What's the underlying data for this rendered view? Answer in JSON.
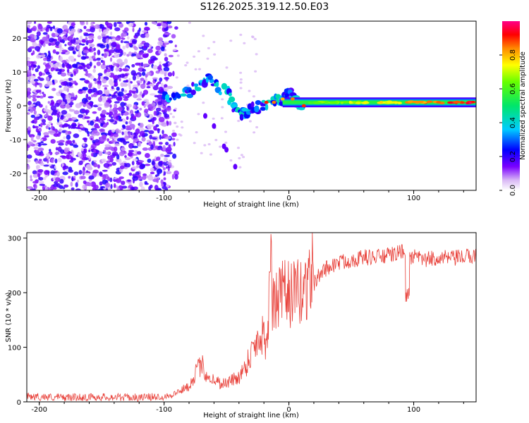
{
  "figure_title": "S126.2025.319.12.50.E03",
  "chart_data": [
    {
      "type": "heatmap",
      "title": "S126.2025.319.12.50.E03",
      "xlabel": "Height of straight line (km)",
      "ylabel": "Frequency (Hz)",
      "xlim": [
        -210,
        150
      ],
      "ylim": [
        -25,
        25
      ],
      "x_ticks": [
        -200,
        -100,
        0,
        100
      ],
      "x_tick_labels": [
        "-200",
        "-100",
        "0",
        "100"
      ],
      "y_ticks": [
        -20,
        -10,
        0,
        10,
        20
      ],
      "y_tick_labels": [
        "-20",
        "-10",
        "0",
        "10",
        "20"
      ],
      "colorbar": {
        "label": "Normalized spectral amplitude",
        "range": [
          0,
          1
        ],
        "ticks": [
          0.0,
          0.2,
          0.4,
          0.6,
          0.8
        ],
        "tick_labels": [
          "0.0",
          "0.2",
          "0.4",
          "0.6",
          "0.8"
        ],
        "colormap": "rainbow (white-purple-blue-cyan-green-yellow-red-magenta)"
      },
      "features": {
        "noise_region_x": [
          -210,
          -95
        ],
        "noise_amplitude": 0.1,
        "band_center_hz": 1,
        "band_x_start": -5,
        "band_peak_amplitude": 1.0,
        "tilted_path": [
          [
            -100,
            2
          ],
          [
            -80,
            4
          ],
          [
            -65,
            8
          ],
          [
            -50,
            4
          ],
          [
            -40,
            -3
          ],
          [
            -30,
            -1
          ],
          [
            -15,
            1
          ],
          [
            -5,
            2
          ],
          [
            0,
            4
          ],
          [
            5,
            2
          ],
          [
            10,
            0
          ]
        ]
      }
    },
    {
      "type": "line",
      "xlabel": "Height of straight line (km)",
      "ylabel": "SNR (10 * v/v)",
      "xlim": [
        -210,
        150
      ],
      "ylim": [
        0,
        310
      ],
      "x_ticks": [
        -200,
        -100,
        0,
        100
      ],
      "x_tick_labels": [
        "-200",
        "-100",
        "0",
        "100"
      ],
      "y_ticks": [
        0,
        100,
        200,
        300
      ],
      "y_tick_labels": [
        "0",
        "100",
        "200",
        "300"
      ],
      "series": [
        {
          "name": "SNR",
          "color": "#e8413a",
          "x": [
            -210,
            -180,
            -150,
            -120,
            -100,
            -90,
            -80,
            -75,
            -70,
            -65,
            -60,
            -55,
            -50,
            -45,
            -40,
            -35,
            -30,
            -25,
            -20,
            -18,
            -15,
            -10,
            -5,
            0,
            5,
            10,
            15,
            20,
            25,
            30,
            35,
            40,
            50,
            60,
            70,
            80,
            90,
            95,
            100,
            110,
            120,
            130,
            140,
            150
          ],
          "y": [
            10,
            8,
            9,
            8,
            10,
            15,
            25,
            45,
            60,
            40,
            35,
            30,
            30,
            35,
            40,
            55,
            80,
            100,
            110,
            90,
            140,
            160,
            170,
            175,
            170,
            175,
            190,
            215,
            235,
            245,
            250,
            255,
            260,
            265,
            265,
            268,
            275,
            265,
            265,
            260,
            265,
            262,
            265,
            268
          ]
        }
      ]
    }
  ]
}
